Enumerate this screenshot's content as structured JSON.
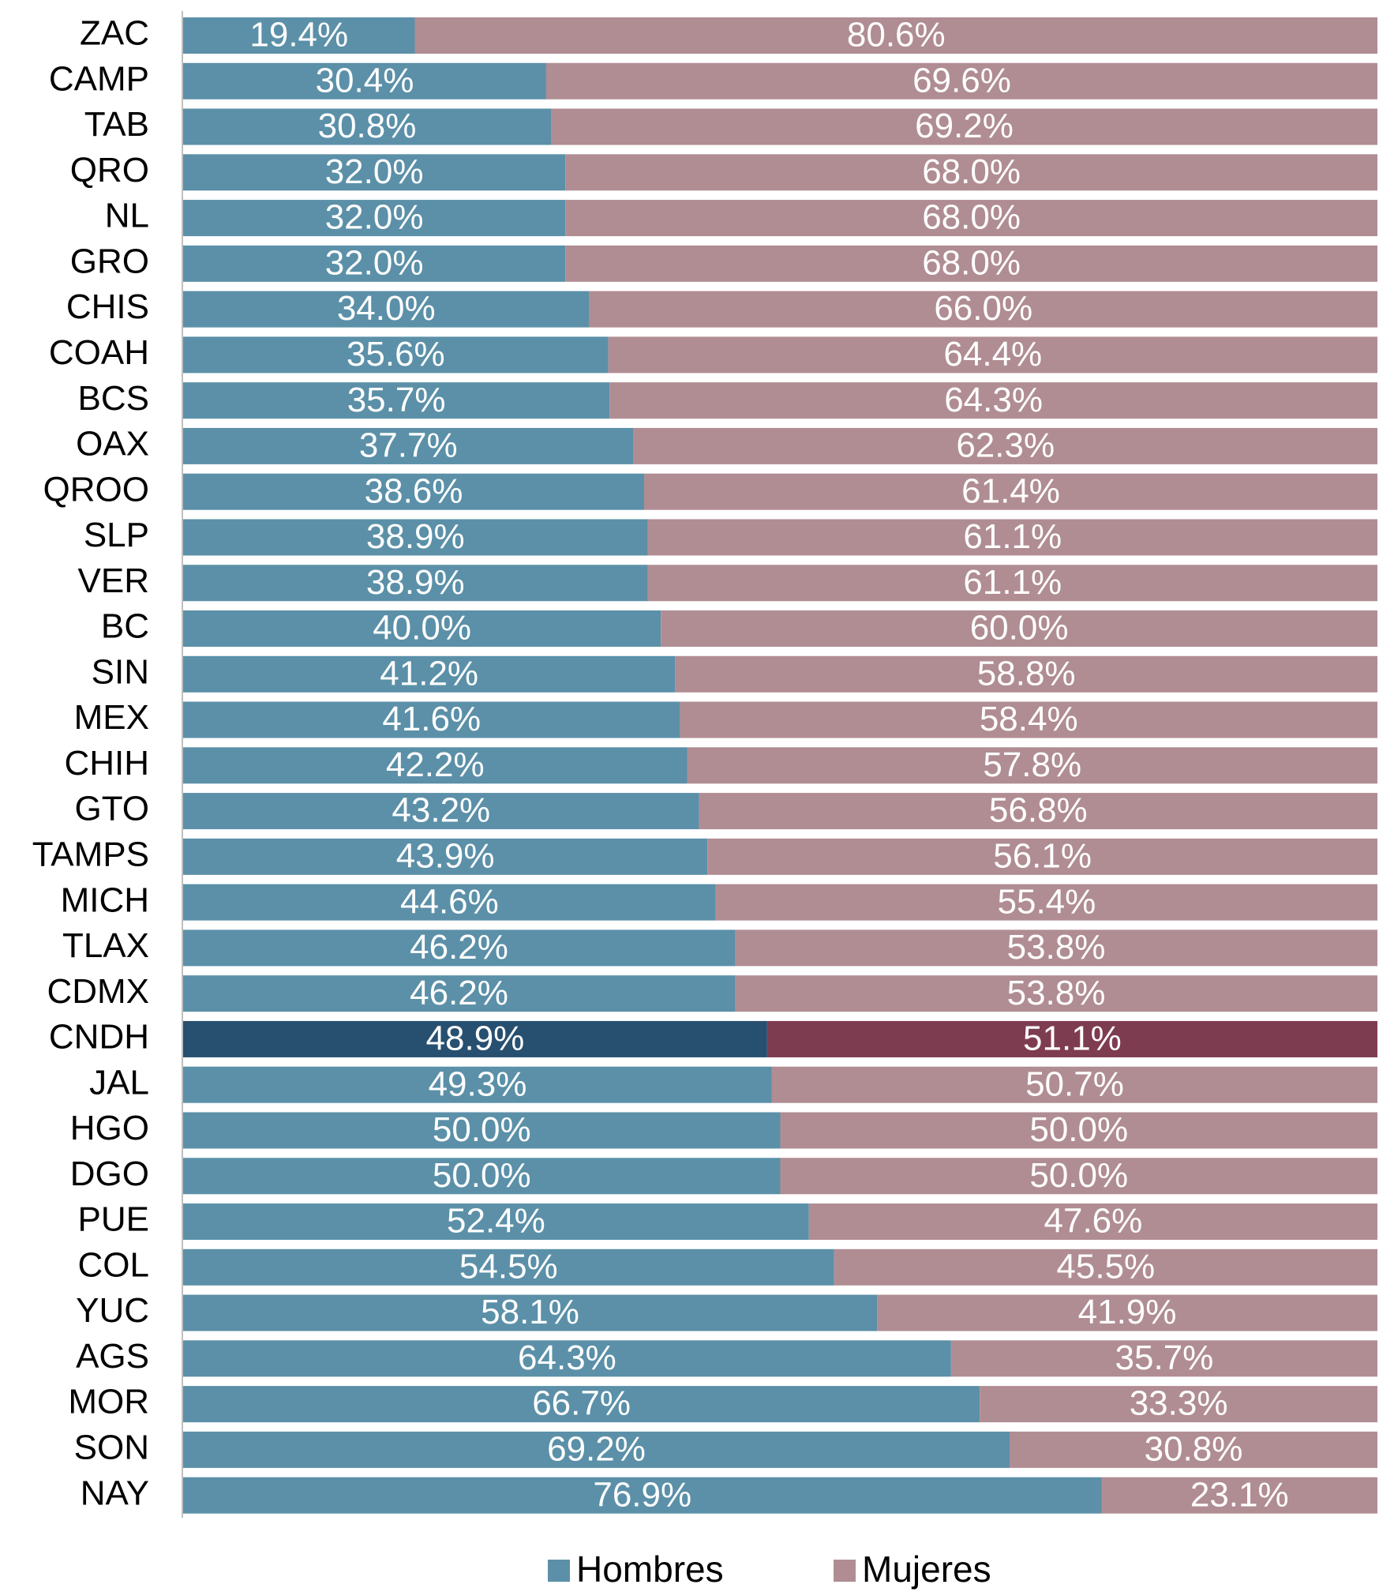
{
  "chart_data": {
    "type": "stacked_barh",
    "categories": [
      "ZAC",
      "CAMP",
      "TAB",
      "QRO",
      "NL",
      "GRO",
      "CHIS",
      "COAH",
      "BCS",
      "OAX",
      "QROO",
      "SLP",
      "VER",
      "BC",
      "SIN",
      "MEX",
      "CHIH",
      "GTO",
      "TAMPS",
      "MICH",
      "TLAX",
      "CDMX",
      "CNDH",
      "JAL",
      "HGO",
      "DGO",
      "PUE",
      "COL",
      "YUC",
      "AGS",
      "MOR",
      "SON",
      "NAY"
    ],
    "series": [
      {
        "name": "Hombres",
        "color": "#5b90a8",
        "highlight_color": "#274f70",
        "values": [
          19.4,
          30.4,
          30.8,
          32.0,
          32.0,
          32.0,
          34.0,
          35.6,
          35.7,
          37.7,
          38.6,
          38.9,
          38.9,
          40.0,
          41.2,
          41.6,
          42.2,
          43.2,
          43.9,
          44.6,
          46.2,
          46.2,
          48.9,
          49.3,
          50.0,
          50.0,
          52.4,
          54.5,
          58.1,
          64.3,
          66.7,
          69.2,
          76.9
        ],
        "value_labels": [
          "19.4%",
          "30.4%",
          "30.8%",
          "32.0%",
          "32.0%",
          "32.0%",
          "34.0%",
          "35.6%",
          "35.7%",
          "37.7%",
          "38.6%",
          "38.9%",
          "38.9%",
          "40.0%",
          "41.2%",
          "41.6%",
          "42.2%",
          "43.2%",
          "43.9%",
          "44.6%",
          "46.2%",
          "46.2%",
          "48.9%",
          "49.3%",
          "50.0%",
          "50.0%",
          "52.4%",
          "54.5%",
          "58.1%",
          "64.3%",
          "66.7%",
          "69.2%",
          "76.9%"
        ]
      },
      {
        "name": "Mujeres",
        "color": "#b08d93",
        "highlight_color": "#7e3c51",
        "values": [
          80.6,
          69.6,
          69.2,
          68.0,
          68.0,
          68.0,
          66.0,
          64.4,
          64.3,
          62.3,
          61.4,
          61.1,
          61.1,
          60.0,
          58.8,
          58.4,
          57.8,
          56.8,
          56.1,
          55.4,
          53.8,
          53.8,
          51.1,
          50.7,
          50.0,
          50.0,
          47.6,
          45.5,
          41.9,
          35.7,
          33.3,
          30.8,
          23.1
        ],
        "value_labels": [
          "80.6%",
          "69.6%",
          "69.2%",
          "68.0%",
          "68.0%",
          "68.0%",
          "66.0%",
          "64.4%",
          "64.3%",
          "62.3%",
          "61.4%",
          "61.1%",
          "61.1%",
          "60.0%",
          "58.8%",
          "58.4%",
          "57.8%",
          "56.8%",
          "56.1%",
          "55.4%",
          "53.8%",
          "53.8%",
          "51.1%",
          "50.7%",
          "50.0%",
          "50.0%",
          "47.6%",
          "45.5%",
          "41.9%",
          "35.7%",
          "33.3%",
          "30.8%",
          "23.1%"
        ]
      }
    ],
    "highlight_category": "CNDH",
    "xlim": [
      0,
      100
    ],
    "legend": "bottom"
  }
}
